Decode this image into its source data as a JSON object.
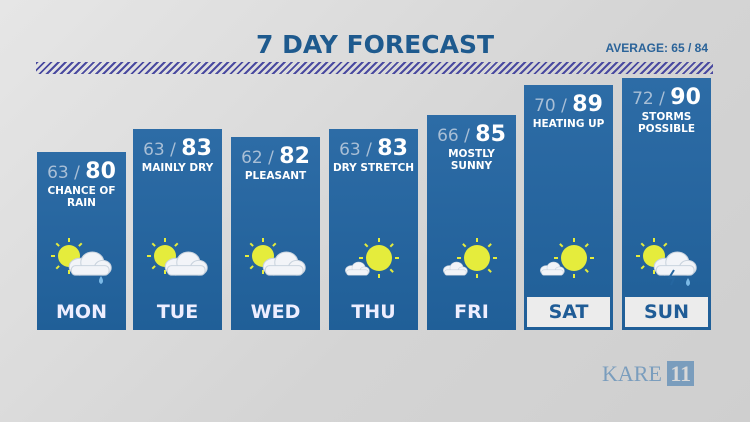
{
  "header": {
    "title": "7 DAY FORECAST",
    "average": "AVERAGE: 65  /  84"
  },
  "days": [
    {
      "day": "MON",
      "low": "63",
      "high": "80",
      "desc": "CHANCE OF RAIN",
      "icon": "partly-cloudy-rain-icon",
      "highlight": false
    },
    {
      "day": "TUE",
      "low": "63",
      "high": "83",
      "desc": "MAINLY DRY",
      "icon": "partly-cloudy-icon",
      "highlight": false
    },
    {
      "day": "WED",
      "low": "62",
      "high": "82",
      "desc": "PLEASANT",
      "icon": "partly-cloudy-icon",
      "highlight": false
    },
    {
      "day": "THU",
      "low": "63",
      "high": "83",
      "desc": "DRY STRETCH",
      "icon": "mostly-sunny-icon",
      "highlight": false
    },
    {
      "day": "FRI",
      "low": "66",
      "high": "85",
      "desc": "MOSTLY SUNNY",
      "icon": "mostly-sunny-icon",
      "highlight": false
    },
    {
      "day": "SAT",
      "low": "70",
      "high": "89",
      "desc": "HEATING UP",
      "icon": "mostly-sunny-icon",
      "highlight": true
    },
    {
      "day": "SUN",
      "low": "72",
      "high": "90",
      "desc": "STORMS POSSIBLE",
      "icon": "storm-icon",
      "highlight": true
    }
  ],
  "logo": "KARE 11",
  "colors": {
    "panel": "#2566a0",
    "sun": "#e5ec3c",
    "cloud": "#f2f4f8",
    "title": "#1e5a8e"
  }
}
